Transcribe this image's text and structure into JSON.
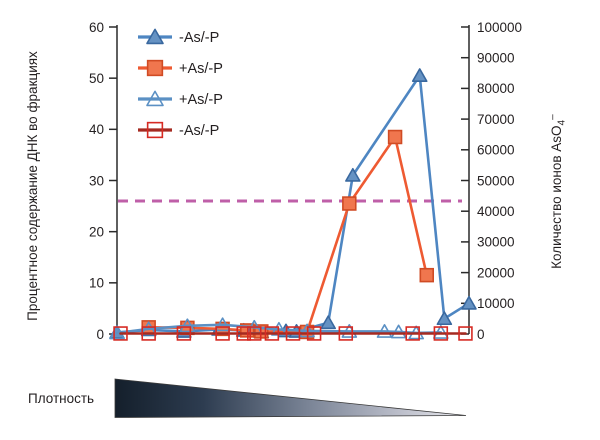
{
  "figure": {
    "left_axis_label": "Процентное содержание ДНК во фракциях",
    "right_axis_label_main": "Количество ионов AsO",
    "right_axis_label_sub": "4",
    "right_axis_label_sup": "–",
    "density_label": "Плотность"
  },
  "colors": {
    "text": "#231f20",
    "axis": "#2a2a2a",
    "threshold": "#bf5fa8",
    "blue_line": "#4e86c2",
    "blue_marker_fill": "#6592c3",
    "blue_marker_stroke": "#39689f",
    "orange_line": "#ee5a32",
    "orange_marker_fill": "#f0764e",
    "orange_marker_stroke": "#d04b24",
    "open_blue_line": "#5b90c4",
    "dark_red_line": "#a52a21",
    "red_marker_stroke": "#d62a23",
    "wedge_dark": "#141f2b",
    "wedge_mid": "#7a8496",
    "wedge_light": "#e9e9ee"
  },
  "chart_data": {
    "type": "line",
    "title": "",
    "x_axis": {
      "label": "Плотность",
      "tick_labels": [],
      "note": "no numeric x ticks; density gradient wedge below plot decreases left to right; x given as relative position 0-100 across plot"
    },
    "left_axis": {
      "label": "Процентное содержание ДНК во фракциях",
      "min": 0,
      "max": 60,
      "tick_step": 10,
      "tick_labels": [
        "0",
        "10",
        "20",
        "30",
        "40",
        "50",
        "60"
      ]
    },
    "right_axis": {
      "label": "Количество ионов AsO4–",
      "min": 0,
      "max": 100000,
      "tick_step": 10000,
      "tick_labels": [
        "0",
        "10000",
        "20000",
        "30000",
        "40000",
        "50000",
        "60000",
        "70000",
        "80000",
        "90000",
        "100000"
      ]
    },
    "threshold_line": {
      "left_value": 26,
      "right_value_equivalent": 43000,
      "style": "dashed",
      "color": "#bf5fa8"
    },
    "legend_position": "top-left",
    "grid": "off",
    "series": [
      {
        "label": "-As/-P",
        "marker": "triangle-filled",
        "axis": "left",
        "line_color": "#4e86c2",
        "marker_fill": "#6592c3",
        "marker_stroke": "#39689f",
        "x": [
          0,
          9,
          19,
          29,
          36,
          41,
          48,
          51,
          60,
          67,
          86,
          93,
          100
        ],
        "y": [
          0.3,
          0.8,
          0.5,
          0.9,
          0.7,
          0.4,
          0.6,
          0.5,
          2.2,
          31,
          50.5,
          3,
          6
        ]
      },
      {
        "label": "+As/-P",
        "marker": "square-filled",
        "axis": "left",
        "line_color": "#ee5a32",
        "marker_fill": "#f0764e",
        "marker_stroke": "#d04b24",
        "x": [
          9,
          20,
          30,
          37,
          41,
          54,
          66,
          79,
          88
        ],
        "y": [
          1.3,
          1.2,
          1.0,
          0.7,
          0.5,
          0.4,
          25.5,
          38.5,
          11.5
        ]
      },
      {
        "label": "+As/-P",
        "marker": "triangle-open",
        "axis": "left",
        "line_color": "#5b90c4",
        "marker_fill": "none",
        "marker_stroke": "#5b90c4",
        "x": [
          0,
          9,
          20,
          30,
          39,
          46,
          54,
          66,
          76,
          80,
          85,
          92
        ],
        "y": [
          0.2,
          1.0,
          1.6,
          1.8,
          1.3,
          0.9,
          0.6,
          0.5,
          0.5,
          0.4,
          0.2,
          0.3
        ]
      },
      {
        "label": "-As/-P",
        "marker": "square-open",
        "axis": "left",
        "line_color": "#a52a21",
        "marker_fill": "none",
        "marker_stroke": "#d62a23",
        "x": [
          1,
          9,
          19,
          30,
          36,
          39,
          44,
          50,
          56,
          65,
          84,
          92,
          99
        ],
        "y": [
          0.1,
          0.1,
          0.1,
          0.1,
          0.1,
          0.1,
          0.1,
          0.1,
          0.1,
          0.1,
          0.1,
          0.1,
          0.1
        ]
      }
    ]
  }
}
